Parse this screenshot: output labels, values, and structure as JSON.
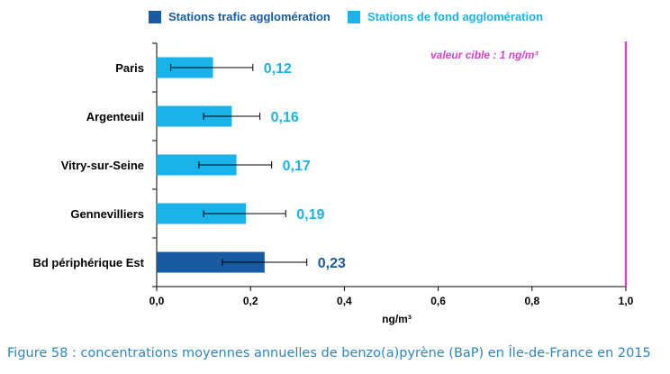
{
  "legend": [
    {
      "label": "Stations trafic agglomération",
      "color": "#1a5aa0"
    },
    {
      "label": "Stations de fond agglomération",
      "color": "#1ab2ea"
    }
  ],
  "caption": "Figure 58 : concentrations moyennes annuelles de benzo(a)pyrène (BaP) en Île-de-France en 2015",
  "chart_data": {
    "type": "bar",
    "orientation": "horizontal",
    "categories": [
      "Paris",
      "Argenteuil",
      "Vitry-sur-Seine",
      "Gennevilliers",
      "Bd périphérique Est"
    ],
    "values": [
      0.12,
      0.16,
      0.17,
      0.19,
      0.23
    ],
    "value_labels": [
      "0,12",
      "0,16",
      "0,17",
      "0,19",
      "0,23"
    ],
    "error_low": [
      0.03,
      0.1,
      0.09,
      0.1,
      0.14
    ],
    "error_high": [
      0.205,
      0.22,
      0.245,
      0.275,
      0.32
    ],
    "series_type": [
      "fond",
      "fond",
      "fond",
      "fond",
      "trafic"
    ],
    "colors": {
      "trafic": "#1a5aa0",
      "fond": "#1ab2ea",
      "label_trafic": "#1a5aa0",
      "label_fond": "#1ab2ea",
      "target": "#e040c8"
    },
    "xlabel": "ng/m³",
    "xlim": [
      0,
      1.0
    ],
    "xticks": [
      0,
      0.2,
      0.4,
      0.6,
      0.8,
      1.0
    ],
    "xtick_labels": [
      "0,0",
      "0,2",
      "0,4",
      "0,6",
      "0,8",
      "1,0"
    ],
    "target_value": 1.0,
    "target_label": "valeur cible : 1 ng/m³",
    "grid": false
  }
}
